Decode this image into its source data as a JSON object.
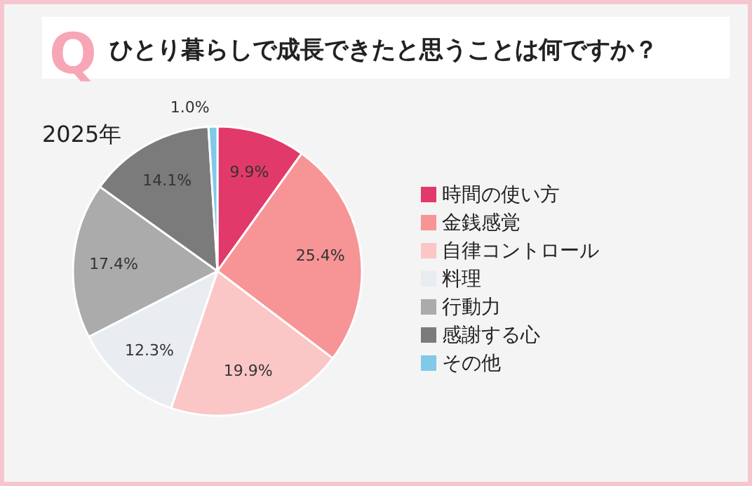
{
  "chart_data": {
    "type": "pie",
    "title": "ひとり暮らしで成長できたと思うことは何ですか？",
    "subtitle": "2025年",
    "annotations": [
      "Q"
    ],
    "categories": [
      "時間の使い方",
      "金銭感覚",
      "自律コントロール",
      "料理",
      "行動力",
      "感謝する心",
      "その他"
    ],
    "values": [
      9.9,
      25.4,
      19.9,
      12.3,
      17.4,
      14.1,
      1.0
    ],
    "colors": [
      "#e2396b",
      "#f79495",
      "#fbc6c6",
      "#e9ecf0",
      "#ababab",
      "#7b7b7b",
      "#7fc9e9"
    ],
    "value_labels": [
      "9.9%",
      "25.4%",
      "19.9%",
      "12.3%",
      "17.4%",
      "14.1%",
      "1.0%"
    ],
    "legend": "right"
  }
}
